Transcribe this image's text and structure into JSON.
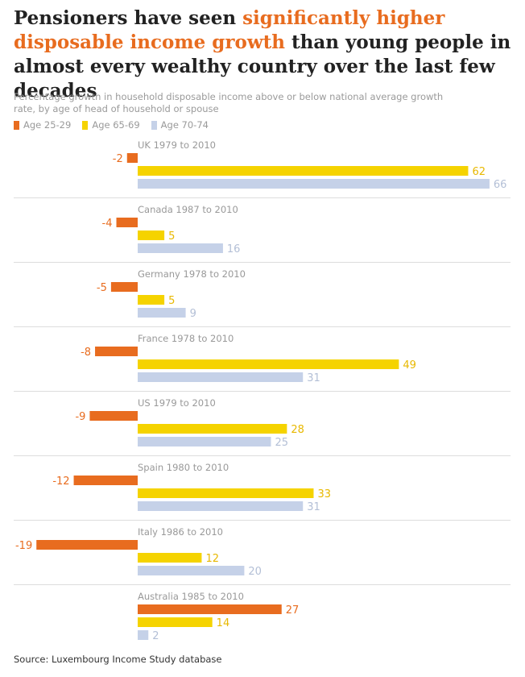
{
  "title": {
    "pre": "Pensioners have seen ",
    "highlight": "significantly higher disposable income growth",
    "post": " than young people in almost every wealthy country over the last few decades"
  },
  "subtitle": "Percentage growth in household disposable income above or below national average growth rate, by age of head of household or spouse",
  "legend": [
    {
      "label": "Age 25-29",
      "color": "#e86c1f"
    },
    {
      "label": "Age 65-69",
      "color": "#f5d300"
    },
    {
      "label": "Age 70-74",
      "color": "#c5d1e8"
    }
  ],
  "source": "Source: Luxembourg Income Study database",
  "chart_data": {
    "type": "bar",
    "orientation": "horizontal",
    "categories": [
      "UK 1979 to 2010",
      "Canada 1987 to 2010",
      "Germany 1978 to 2010",
      "France 1978 to 2010",
      "US 1979 to 2010",
      "Spain 1980 to 2010",
      "Italy 1986 to 2010",
      "Australia 1985 to 2010"
    ],
    "series": [
      {
        "name": "Age 25-29",
        "color": "#e86c1f",
        "label_color": "#e86c1f",
        "values": [
          -2,
          -4,
          -5,
          -8,
          -9,
          -12,
          -19,
          27
        ]
      },
      {
        "name": "Age 65-69",
        "color": "#f5d300",
        "label_color": "#e8b800",
        "values": [
          62,
          5,
          5,
          49,
          28,
          33,
          12,
          14
        ]
      },
      {
        "name": "Age 70-74",
        "color": "#c5d1e8",
        "label_color": "#b3bfd6",
        "values": [
          66,
          16,
          9,
          31,
          25,
          31,
          20,
          2
        ]
      }
    ],
    "category_color": "#999999",
    "separator_color": "#dddddd"
  }
}
